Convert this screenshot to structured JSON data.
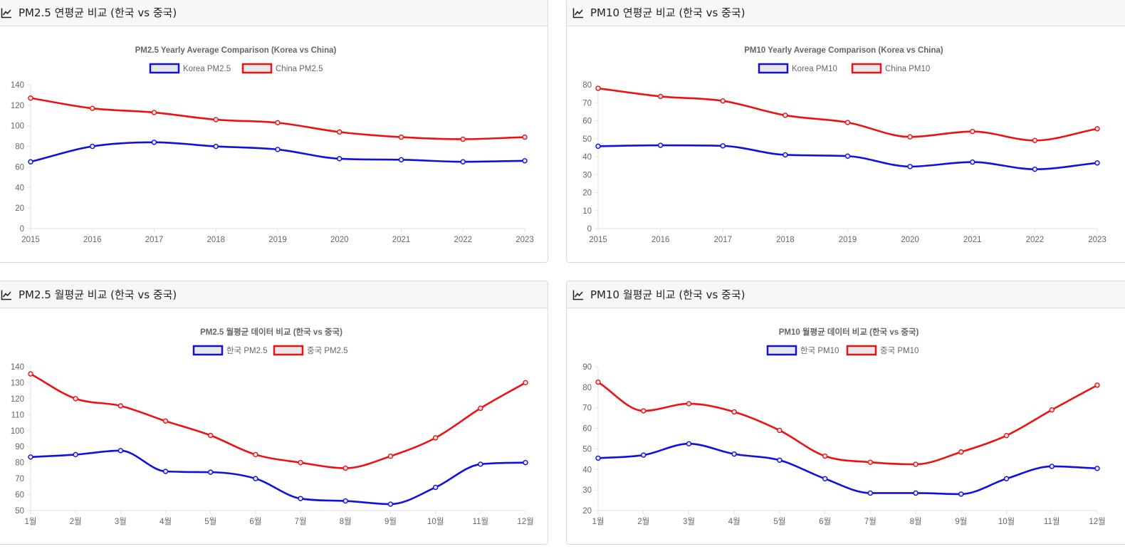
{
  "panels": [
    {
      "header": "PM2.5 연평균 비교 (한국 vs 중국)",
      "chart_data": {
        "type": "line",
        "title": "PM2.5 Yearly Average Comparison (Korea vs China)",
        "categories": [
          "2015",
          "2016",
          "2017",
          "2018",
          "2019",
          "2020",
          "2021",
          "2022",
          "2023"
        ],
        "ylim": [
          0,
          140
        ],
        "yticks": [
          0,
          20,
          40,
          60,
          80,
          100,
          120,
          140
        ],
        "grid": false,
        "legend": "top",
        "series": [
          {
            "name": "Korea PM2.5",
            "color": "#1010e0",
            "values": [
              65,
              80,
              84,
              80,
              77,
              68,
              67,
              65,
              66
            ]
          },
          {
            "name": "China PM2.5",
            "color": "#ee1111",
            "values": [
              127,
              117,
              113,
              106,
              103,
              94,
              89,
              87,
              89
            ]
          }
        ]
      }
    },
    {
      "header": "PM10 연평균 비교 (한국 vs 중국)",
      "chart_data": {
        "type": "line",
        "title": "PM10 Yearly Average Comparison (Korea vs China)",
        "categories": [
          "2015",
          "2016",
          "2017",
          "2018",
          "2019",
          "2020",
          "2021",
          "2022",
          "2023"
        ],
        "ylim": [
          0,
          80
        ],
        "yticks": [
          0,
          10,
          20,
          30,
          40,
          50,
          60,
          70,
          80
        ],
        "grid": false,
        "legend": "top",
        "series": [
          {
            "name": "Korea PM10",
            "color": "#1010e0",
            "values": [
              45.8,
              46.3,
              46,
              41,
              40.3,
              34.5,
              37,
              33,
              36.5
            ]
          },
          {
            "name": "China PM10",
            "color": "#ee1111",
            "values": [
              78,
              73.5,
              71,
              63,
              59,
              51,
              54,
              49,
              55.5
            ]
          }
        ]
      }
    },
    {
      "header": "PM2.5 월평균 비교 (한국 vs 중국)",
      "chart_data": {
        "type": "line",
        "title": "PM2.5 월평균 데이터 비교 (한국 vs 중국)",
        "categories": [
          "1월",
          "2월",
          "3월",
          "4월",
          "5월",
          "6월",
          "7월",
          "8월",
          "9월",
          "10월",
          "11월",
          "12월"
        ],
        "ylim": [
          50,
          140
        ],
        "yticks": [
          50,
          60,
          70,
          80,
          90,
          100,
          110,
          120,
          130,
          140
        ],
        "grid": false,
        "legend": "top",
        "series": [
          {
            "name": "한국 PM2.5",
            "color": "#1010e0",
            "values": [
              83.5,
              85,
              87.5,
              74.5,
              74,
              70,
              57.5,
              56,
              54,
              64.5,
              79,
              80
            ]
          },
          {
            "name": "중국 PM2.5",
            "color": "#ee1111",
            "values": [
              135.5,
              120,
              115.5,
              106,
              97,
              85,
              80,
              76.5,
              84,
              95.5,
              114,
              130
            ]
          }
        ]
      }
    },
    {
      "header": "PM10 월평균 비교 (한국 vs 중국)",
      "chart_data": {
        "type": "line",
        "title": "PM10 월평균 데이터 비교 (한국 vs 중국)",
        "categories": [
          "1월",
          "2월",
          "3월",
          "4월",
          "5월",
          "6월",
          "7월",
          "8월",
          "9월",
          "10월",
          "11월",
          "12월"
        ],
        "ylim": [
          20,
          90
        ],
        "yticks": [
          20,
          30,
          40,
          50,
          60,
          70,
          80,
          90
        ],
        "grid": false,
        "legend": "top",
        "series": [
          {
            "name": "한국 PM10",
            "color": "#1010e0",
            "values": [
              45.5,
              47,
              52.5,
              47.5,
              44.5,
              35.5,
              28.5,
              28.5,
              28,
              35.5,
              41.5,
              40.5
            ]
          },
          {
            "name": "중국 PM10",
            "color": "#ee1111",
            "values": [
              82.5,
              68.5,
              72,
              68,
              59,
              46.5,
              43.5,
              42.5,
              48.5,
              56.5,
              69,
              81
            ]
          }
        ]
      }
    }
  ]
}
